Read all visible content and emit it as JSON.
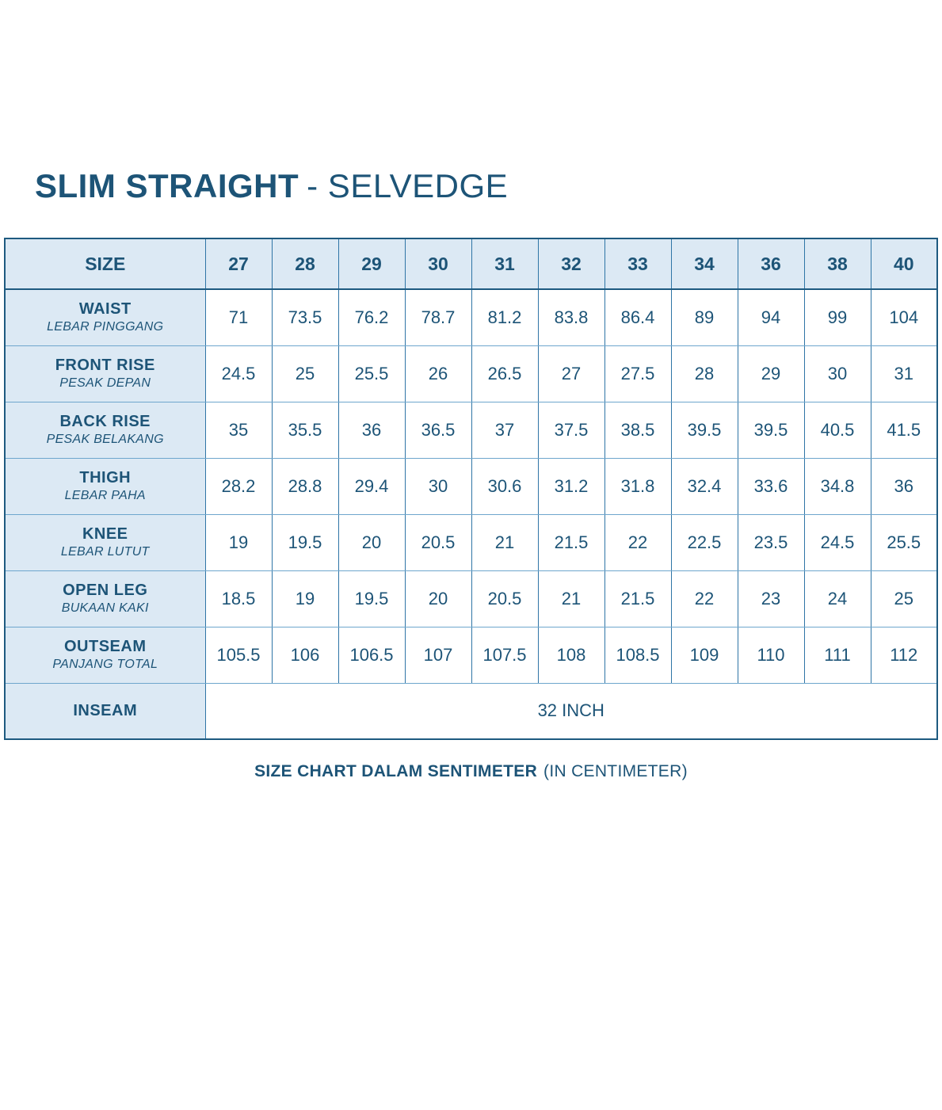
{
  "title": {
    "main": "SLIM STRAIGHT",
    "suffix": "- SELVEDGE"
  },
  "caption": {
    "bold": "SIZE CHART DALAM SENTIMETER",
    "regular": "(IN CENTIMETER)"
  },
  "colors": {
    "text": "#1d5477",
    "cell_background": "#dce9f4",
    "border": "#2f75a6",
    "outer_border": "#1e5a80"
  },
  "chart_data": {
    "type": "table",
    "title": "SLIM STRAIGHT - SELVEDGE",
    "caption": "SIZE CHART DALAM SENTIMETER (IN CENTIMETER)",
    "unit": "centimeter",
    "columns": [
      "SIZE",
      "27",
      "28",
      "29",
      "30",
      "31",
      "32",
      "33",
      "34",
      "36",
      "38",
      "40"
    ],
    "rows": [
      {
        "label": "WAIST",
        "sublabel": "LEBAR PINGGANG",
        "values": [
          "71",
          "73.5",
          "76.2",
          "78.7",
          "81.2",
          "83.8",
          "86.4",
          "89",
          "94",
          "99",
          "104"
        ]
      },
      {
        "label": "FRONT RISE",
        "sublabel": "PESAK DEPAN",
        "values": [
          "24.5",
          "25",
          "25.5",
          "26",
          "26.5",
          "27",
          "27.5",
          "28",
          "29",
          "30",
          "31"
        ]
      },
      {
        "label": "BACK RISE",
        "sublabel": "PESAK BELAKANG",
        "values": [
          "35",
          "35.5",
          "36",
          "36.5",
          "37",
          "37.5",
          "38.5",
          "39.5",
          "39.5",
          "40.5",
          "41.5"
        ]
      },
      {
        "label": "THIGH",
        "sublabel": "LEBAR PAHA",
        "values": [
          "28.2",
          "28.8",
          "29.4",
          "30",
          "30.6",
          "31.2",
          "31.8",
          "32.4",
          "33.6",
          "34.8",
          "36"
        ]
      },
      {
        "label": "KNEE",
        "sublabel": "LEBAR LUTUT",
        "values": [
          "19",
          "19.5",
          "20",
          "20.5",
          "21",
          "21.5",
          "22",
          "22.5",
          "23.5",
          "24.5",
          "25.5"
        ]
      },
      {
        "label": "OPEN LEG",
        "sublabel": "BUKAAN KAKI",
        "values": [
          "18.5",
          "19",
          "19.5",
          "20",
          "20.5",
          "21",
          "21.5",
          "22",
          "23",
          "24",
          "25"
        ]
      },
      {
        "label": "OUTSEAM",
        "sublabel": "PANJANG TOTAL",
        "values": [
          "105.5",
          "106",
          "106.5",
          "107",
          "107.5",
          "108",
          "108.5",
          "109",
          "110",
          "111",
          "112"
        ]
      }
    ],
    "footer_row": {
      "label": "INSEAM",
      "merged_value": "32 INCH"
    }
  }
}
